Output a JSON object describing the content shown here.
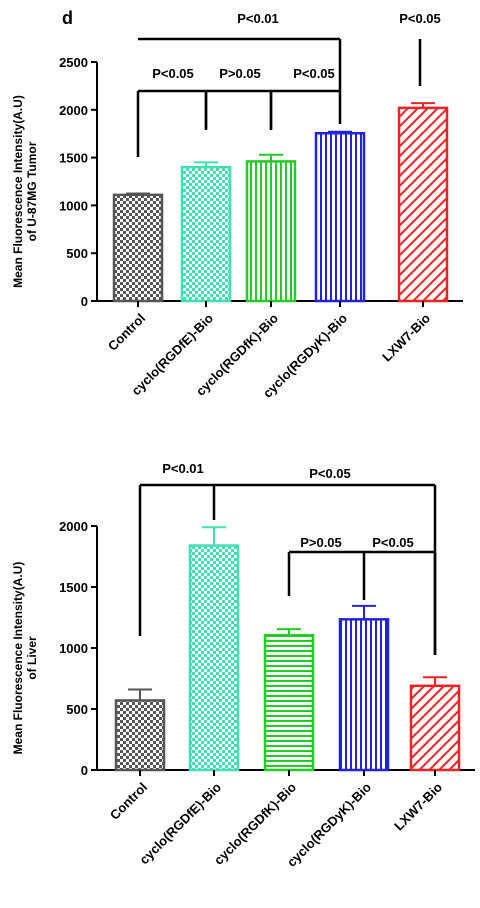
{
  "panel_label": "d",
  "chart_data": [
    {
      "type": "bar",
      "ylabel_lines": [
        "Mean Fluorescence Intensity(A.U)",
        "of U-87MG Tumor"
      ],
      "ylim": [
        0,
        2500
      ],
      "yticks": [
        0,
        500,
        1000,
        1500,
        2000,
        2500
      ],
      "categories": [
        "Control",
        "cyclo(RGDfE)-Bio",
        "cyclo(RGDfK)-Bio",
        "cyclo(RGDyK)-Bio",
        "LXW7-Bio"
      ],
      "values": [
        1110,
        1400,
        1460,
        1755,
        2020
      ],
      "errors": [
        15,
        50,
        70,
        15,
        50
      ],
      "bar_colors": [
        "#555555",
        "#40e0b0",
        "#22cc22",
        "#2222dd",
        "#ee2222"
      ],
      "bar_patterns": [
        "checker",
        "checker",
        "vertical",
        "vertical",
        "diagonal"
      ],
      "significance": [
        "P<0.01",
        "P<0.05",
        "P<0.05",
        "P>0.05",
        "P<0.05"
      ]
    },
    {
      "type": "bar",
      "ylabel_lines": [
        "Mean Fluorescence Intensity(A.U)",
        "of Liver"
      ],
      "ylim": [
        0,
        2000
      ],
      "yticks": [
        0,
        500,
        1000,
        1500,
        2000
      ],
      "categories": [
        "Control",
        "cyclo(RGDfE)-Bio",
        "cyclo(RGDfK)-Bio",
        "cyclo(RGDyK)-Bio",
        "LXW7-Bio"
      ],
      "values": [
        570,
        1840,
        1105,
        1235,
        690
      ],
      "errors": [
        90,
        150,
        50,
        110,
        70
      ],
      "bar_colors": [
        "#555555",
        "#40e0b0",
        "#22cc22",
        "#2222dd",
        "#ee2222"
      ],
      "bar_patterns": [
        "checker",
        "checker",
        "horizontal",
        "vertical",
        "diagonal"
      ],
      "significance": [
        "P<0.01",
        "P<0.05",
        "P>0.05",
        "P<0.05"
      ]
    }
  ]
}
